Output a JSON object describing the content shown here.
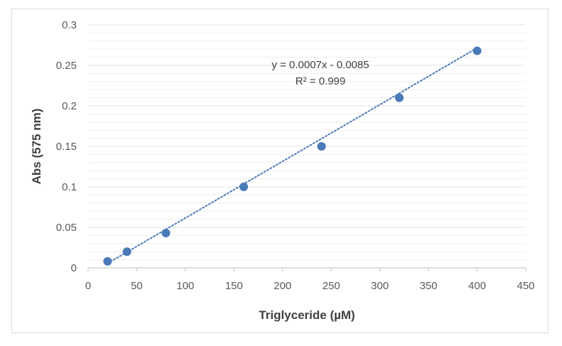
{
  "chart_data": {
    "type": "scatter",
    "xlabel": "Triglyceride (µM)",
    "ylabel": "Abs (575 nm)",
    "xlim": [
      0,
      450
    ],
    "ylim": [
      0,
      0.3
    ],
    "x_ticks": [
      0,
      50,
      100,
      150,
      200,
      250,
      300,
      350,
      400,
      450
    ],
    "y_ticks": [
      0,
      0.05,
      0.1,
      0.15,
      0.2,
      0.25,
      0.3
    ],
    "x_tick_labels": [
      "0",
      "50",
      "100",
      "150",
      "200",
      "250",
      "300",
      "350",
      "400",
      "450"
    ],
    "y_tick_labels": [
      "0",
      "0.05",
      "0.1",
      "0.15",
      "0.2",
      "0.25",
      "0.3"
    ],
    "grid": true,
    "minor_grid": true,
    "series": [
      {
        "x": [
          20,
          40,
          80,
          160,
          240,
          320,
          400
        ],
        "y": [
          0.008,
          0.02,
          0.043,
          0.1,
          0.15,
          0.21,
          0.268
        ],
        "color": "#4a7ab8"
      }
    ],
    "trendline": {
      "type": "linear",
      "slope": 0.0007,
      "intercept": -0.0085,
      "x_range": [
        20,
        400
      ],
      "style": "dotted",
      "color": "#4a7ab8",
      "equation_label": "y = 0.0007x - 0.0085",
      "r2_label": "R² = 0.999"
    },
    "colors": {
      "gridline": "#e4e4e4",
      "axis": "#bfbfbf",
      "marker": "#4a7ab8"
    }
  }
}
